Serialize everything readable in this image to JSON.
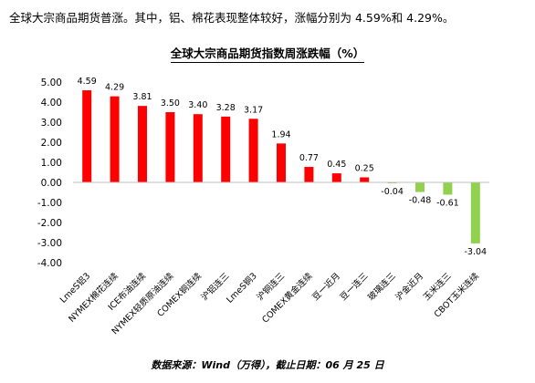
{
  "intro": {
    "text": "全球大宗商品期货普涨。其中，铝、棉花表现整体较好，涨幅分别为 4.59%和 4.29%。"
  },
  "chart_data": {
    "type": "bar",
    "title": "全球大宗商品期货指数周涨跌幅（%）",
    "categories": [
      "LmeS铝3",
      "NYMEX棉花连续",
      "ICE布油连续",
      "NYMEX轻质原油连续",
      "COMEX铜连续",
      "沪铝连三",
      "LmeS铜3",
      "沪铜连三",
      "COMEX黄金连续",
      "豆一近月",
      "豆一连三",
      "玻璃连三",
      "沪金近月",
      "玉米连三",
      "CBOT玉米连续"
    ],
    "values": [
      4.59,
      4.29,
      3.81,
      3.5,
      3.4,
      3.28,
      3.17,
      1.94,
      0.77,
      0.45,
      0.25,
      -0.04,
      -0.48,
      -0.61,
      -3.04
    ],
    "value_labels": [
      "4.59",
      "4.29",
      "3.81",
      "3.50",
      "3.40",
      "3.28",
      "3.17",
      "1.94",
      "0.77",
      "0.45",
      "0.25",
      "-0.04",
      "-0.48",
      "-0.61",
      "-3.04"
    ],
    "yticks": [
      "5.00",
      "4.00",
      "3.00",
      "2.00",
      "1.00",
      "0.00",
      "-1.00",
      "-2.00",
      "-3.00",
      "-4.00"
    ],
    "ylim": [
      -4,
      5
    ],
    "xlabel": "",
    "ylabel": "",
    "grid": false,
    "legend": "none",
    "colors": {
      "positive": "#ff0000",
      "negative": "#92d050",
      "axis": "#bfbfbf"
    }
  },
  "source": {
    "text": "数据来源：Wind（万得），截止日期：06 月 25 日"
  }
}
